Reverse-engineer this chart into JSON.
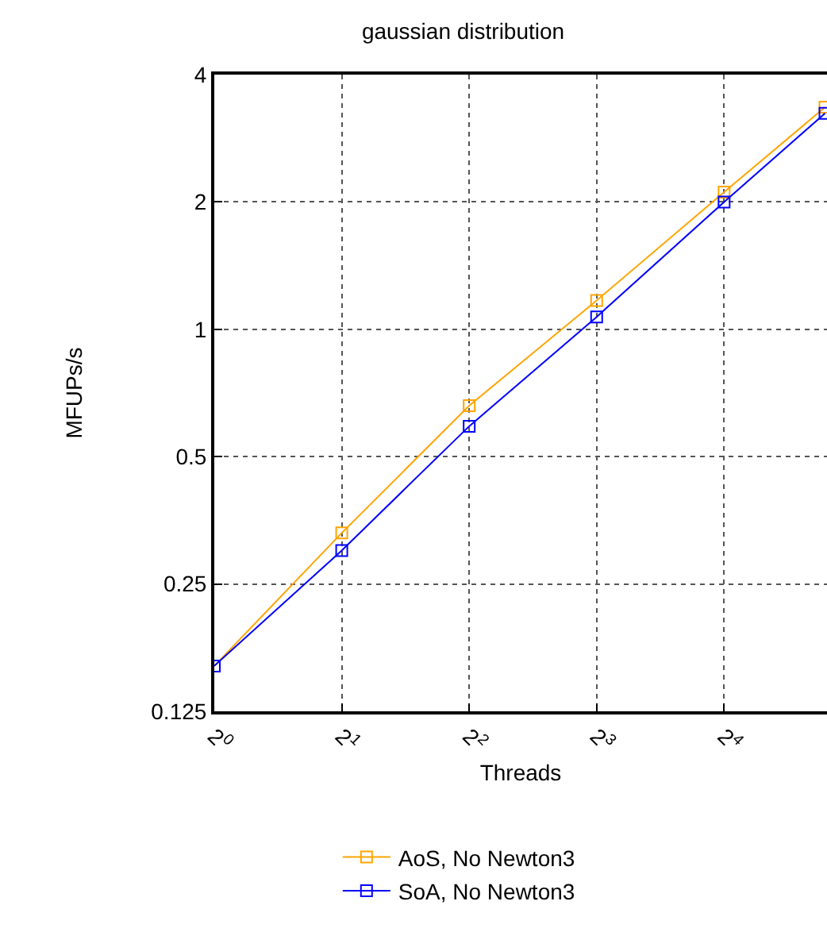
{
  "chart_data": {
    "type": "line",
    "title": "gaussian distribution",
    "xlabel": "Threads",
    "ylabel": "MFUPs/s",
    "log": "xy",
    "grid": true,
    "legend": "bottom",
    "marker": "square",
    "line_style": "solid",
    "xlim": [
      1,
      28
    ],
    "ylim": [
      0.125,
      4
    ],
    "xticks": [
      {
        "value": 1,
        "label": "2$^{0}$"
      },
      {
        "value": 2,
        "label": "2$^{1}$"
      },
      {
        "value": 4,
        "label": "2$^{2}$"
      },
      {
        "value": 8,
        "label": "2$^{3}$"
      },
      {
        "value": 16,
        "label": "2$^{4}$"
      }
    ],
    "yticks": [
      0.125,
      0.25,
      0.5,
      1,
      2,
      4
    ],
    "x": [
      1,
      2,
      4,
      8,
      16,
      27.7
    ],
    "series": [
      {
        "name": "AoS, No Newton3",
        "color": "#ffa500",
        "values": [
          0.16,
          0.33,
          0.66,
          1.17,
          2.11,
          3.35
        ]
      },
      {
        "name": "SoA, No Newton3",
        "color": "#0000ff",
        "values": [
          0.16,
          0.3,
          0.59,
          1.07,
          2.0,
          3.24
        ]
      }
    ]
  }
}
